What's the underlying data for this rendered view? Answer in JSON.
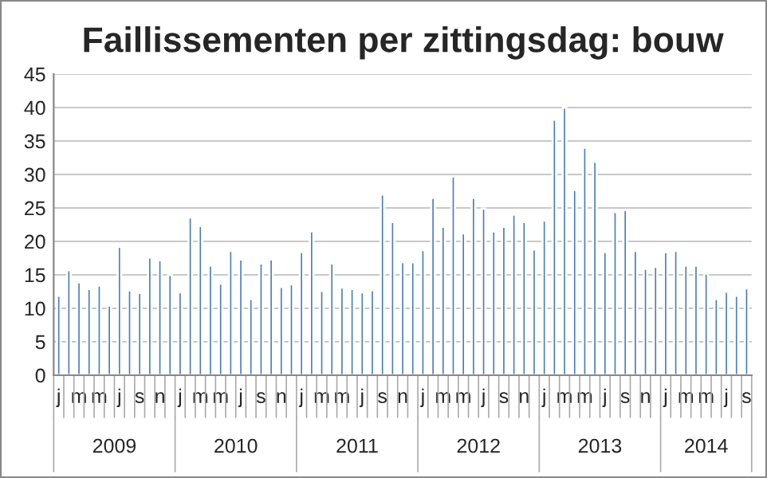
{
  "chart_data": {
    "type": "bar",
    "title": "Faillissementen per zittingsdag: bouw",
    "categories": [
      "j",
      null,
      "m",
      null,
      "m",
      null,
      "j",
      null,
      "s",
      null,
      "n",
      null,
      "j",
      null,
      "m",
      null,
      "m",
      null,
      "j",
      null,
      "s",
      null,
      "n",
      null,
      "j",
      null,
      "m",
      null,
      "m",
      null,
      "j",
      null,
      "s",
      null,
      "n",
      null,
      "j",
      null,
      "m",
      null,
      "m",
      null,
      "j",
      null,
      "s",
      null,
      "n",
      null,
      "j",
      null,
      "m",
      null,
      "m",
      null,
      "j",
      null,
      "s",
      null,
      "n",
      null,
      "j",
      null,
      "m",
      null,
      "m",
      null,
      "j",
      null,
      "s"
    ],
    "values": [
      11.9,
      15.7,
      13.9,
      12.9,
      13.4,
      10.4,
      19.2,
      12.7,
      12.3,
      17.6,
      17.2,
      15.0,
      12.4,
      23.6,
      22.3,
      16.4,
      13.7,
      18.6,
      17.3,
      11.4,
      16.7,
      17.3,
      13.2,
      13.6,
      18.4,
      21.5,
      12.6,
      16.7,
      13.1,
      12.9,
      12.4,
      12.7,
      27.0,
      22.9,
      16.9,
      16.9,
      18.7,
      26.5,
      22.2,
      29.7,
      21.2,
      26.5,
      24.9,
      21.5,
      22.2,
      24.0,
      22.9,
      18.8,
      23.1,
      38.2,
      40.0,
      27.7,
      34.0,
      31.9,
      18.4,
      24.4,
      24.7,
      18.6,
      15.9,
      16.2,
      18.4,
      18.6,
      16.4,
      16.4,
      15.2,
      11.4,
      12.5,
      11.9,
      13.0
    ],
    "color": "#4a7ebb",
    "ylim": [
      0,
      45
    ],
    "yticks": [
      0,
      5,
      10,
      15,
      20,
      25,
      30,
      35,
      40,
      45
    ],
    "grid": "y",
    "annotations": [
      "2009",
      "2010",
      "2011",
      "2012",
      "2013",
      "2014"
    ]
  }
}
